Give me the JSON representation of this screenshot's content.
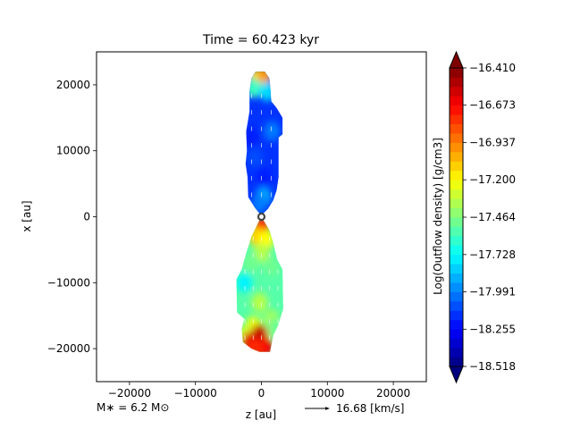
{
  "chart_data": {
    "type": "heatmap",
    "title": "Time = 60.423 kyr",
    "xlabel": "z [au]",
    "ylabel": "x [au]",
    "xlim": [
      -25000,
      25000
    ],
    "ylim": [
      -25000,
      25000
    ],
    "xticks": [
      -20000,
      -10000,
      0,
      10000,
      20000
    ],
    "xtick_labels": [
      "−20000",
      "−10000",
      "0",
      "10000",
      "20000"
    ],
    "yticks": [
      -20000,
      -10000,
      0,
      10000,
      20000
    ],
    "ytick_labels": [
      "−20000",
      "−10000",
      "0",
      "10000",
      "20000"
    ],
    "grid": false,
    "colorbar": {
      "label": "Log(Outflow density) [g/cm3]",
      "colormap": "jet",
      "range": [
        -18.518,
        -16.41
      ],
      "ticks": [
        -16.41,
        -16.673,
        -16.937,
        -17.2,
        -17.464,
        -17.728,
        -17.991,
        -18.255,
        -18.518
      ],
      "tick_labels": [
        "−16.410",
        "−16.673",
        "−16.937",
        "−17.200",
        "−17.464",
        "−17.728",
        "−17.991",
        "−18.255",
        "−18.518"
      ],
      "extend": "both"
    },
    "annotations": {
      "star_mass": "M∗ = 6.2 M⊙",
      "velocity_key": "16.68 [km/s]"
    },
    "star": {
      "z": 0,
      "x": 0
    },
    "upper_lobe": {
      "outline": [
        [
          -1500,
          21000
        ],
        [
          -900,
          22000
        ],
        [
          500,
          22000
        ],
        [
          1200,
          21000
        ],
        [
          1400,
          19000
        ],
        [
          1500,
          17500
        ],
        [
          2300,
          16500
        ],
        [
          3200,
          15000
        ],
        [
          3200,
          12500
        ],
        [
          2600,
          12000
        ],
        [
          2600,
          6000
        ],
        [
          2300,
          4000
        ],
        [
          1800,
          2500
        ],
        [
          1000,
          1200
        ],
        [
          300,
          500
        ],
        [
          -300,
          500
        ],
        [
          -1000,
          1400
        ],
        [
          -2000,
          3000
        ],
        [
          -2100,
          6000
        ],
        [
          -2400,
          8000
        ],
        [
          -2200,
          10000
        ],
        [
          -2300,
          13000
        ],
        [
          -1800,
          16000
        ],
        [
          -1800,
          19000
        ]
      ],
      "cells": [
        {
          "z": -700,
          "x": 21000,
          "v": -17.2
        },
        {
          "z": 300,
          "x": 21200,
          "v": -17.0
        },
        {
          "z": -1200,
          "x": 19500,
          "v": -17.6
        },
        {
          "z": 900,
          "x": 19000,
          "v": -17.8
        },
        {
          "z": 1600,
          "x": 13000,
          "v": -18.0
        },
        {
          "z": -1000,
          "x": 9000,
          "v": -18.1
        },
        {
          "z": 300,
          "x": 3000,
          "v": -17.9
        },
        {
          "z": -300,
          "x": 2000,
          "v": -18.0
        },
        {
          "z": 400,
          "x": 6000,
          "v": -18.2
        },
        {
          "z": -1600,
          "x": 12000,
          "v": -18.2
        }
      ]
    },
    "lower_lobe": {
      "outline": [
        [
          -300,
          -500
        ],
        [
          300,
          -500
        ],
        [
          1200,
          -2000
        ],
        [
          1800,
          -4000
        ],
        [
          2400,
          -6500
        ],
        [
          3200,
          -8000
        ],
        [
          3300,
          -14000
        ],
        [
          2500,
          -16500
        ],
        [
          1800,
          -18000
        ],
        [
          1300,
          -20500
        ],
        [
          -300,
          -20500
        ],
        [
          -1500,
          -20000
        ],
        [
          -2800,
          -19000
        ],
        [
          -3000,
          -17000
        ],
        [
          -2600,
          -15500
        ],
        [
          -3700,
          -14500
        ],
        [
          -3800,
          -9500
        ],
        [
          -3000,
          -8000
        ],
        [
          -2300,
          -5500
        ],
        [
          -1500,
          -3000
        ]
      ],
      "cells": [
        {
          "z": 0,
          "x": -1500,
          "v": -16.7
        },
        {
          "z": -700,
          "x": -3000,
          "v": -17.1
        },
        {
          "z": 700,
          "x": -3500,
          "v": -17.2
        },
        {
          "z": 0,
          "x": -5500,
          "v": -17.35
        },
        {
          "z": -1500,
          "x": -7000,
          "v": -17.5
        },
        {
          "z": 1500,
          "x": -7500,
          "v": -17.5
        },
        {
          "z": -2600,
          "x": -10000,
          "v": -17.75
        },
        {
          "z": 2400,
          "x": -11000,
          "v": -17.55
        },
        {
          "z": -300,
          "x": -13000,
          "v": -17.35
        },
        {
          "z": 1500,
          "x": -15500,
          "v": -17.4
        },
        {
          "z": -1200,
          "x": -16500,
          "v": -17.25
        },
        {
          "z": 0,
          "x": -18000,
          "v": -17.15
        },
        {
          "z": 2200,
          "x": -17000,
          "v": -17.5
        },
        {
          "z": -2500,
          "x": -18000,
          "v": -17.3
        },
        {
          "z": -1800,
          "x": -19000,
          "v": -16.6
        },
        {
          "z": -300,
          "x": -17800,
          "v": -16.55
        },
        {
          "z": 600,
          "x": -19800,
          "v": -16.65
        },
        {
          "z": -1000,
          "x": -19800,
          "v": -16.75
        }
      ]
    }
  }
}
